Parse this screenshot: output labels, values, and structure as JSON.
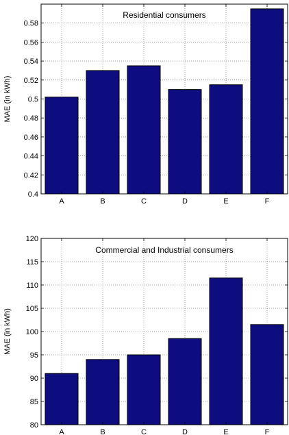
{
  "chart_data": [
    {
      "type": "bar",
      "title": "Residential consumers",
      "xlabel": "",
      "ylabel": "MAE (in kWh)",
      "categories": [
        "A",
        "B",
        "C",
        "D",
        "E",
        "F"
      ],
      "values": [
        0.502,
        0.53,
        0.535,
        0.51,
        0.515,
        0.595
      ],
      "ylim": [
        0.4,
        0.6
      ],
      "yticks": [
        0.4,
        0.42,
        0.44,
        0.46,
        0.48,
        0.5,
        0.52,
        0.54,
        0.56,
        0.58
      ],
      "ytick_labels": [
        "0.4",
        "0.42",
        "0.44",
        "0.46",
        "0.48",
        "0.5",
        "0.52",
        "0.54",
        "0.56",
        "0.58"
      ],
      "grid": true,
      "bar_color": "#0d0d80"
    },
    {
      "type": "bar",
      "title": "Commercial and Industrial consumers",
      "xlabel": "",
      "ylabel": "MAE (in kWh)",
      "categories": [
        "A",
        "B",
        "C",
        "D",
        "E",
        "F"
      ],
      "values": [
        91,
        94,
        95,
        98.5,
        111.5,
        101.5
      ],
      "ylim": [
        80,
        120
      ],
      "yticks": [
        80,
        85,
        90,
        95,
        100,
        105,
        110,
        115,
        120
      ],
      "ytick_labels": [
        "80",
        "85",
        "90",
        "95",
        "100",
        "105",
        "110",
        "115",
        "120"
      ],
      "grid": true,
      "bar_color": "#0d0d80"
    }
  ]
}
